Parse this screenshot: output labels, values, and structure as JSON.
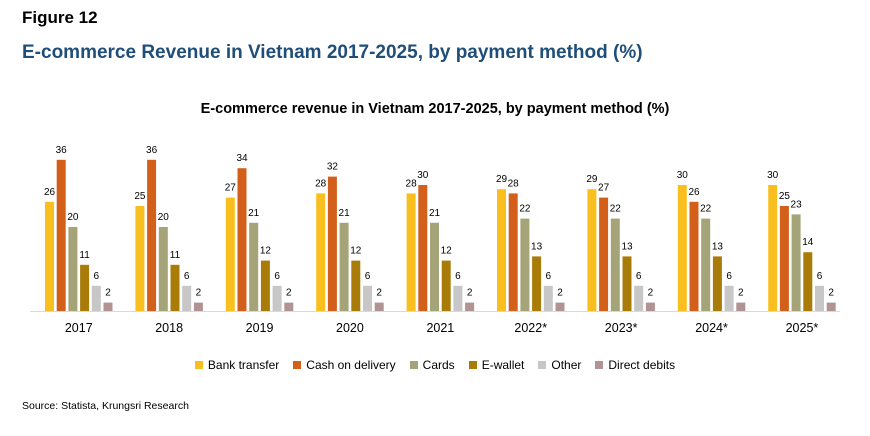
{
  "figure_label": "Figure 12",
  "page_title": "E-commerce Revenue in Vietnam 2017-2025,  by payment method (%)",
  "source": "Source: Statista, Krungsri Research",
  "chart_data": {
    "type": "bar",
    "title": "E-commerce revenue in Vietnam 2017-2025, by payment method (%)",
    "categories": [
      "2017",
      "2018",
      "2019",
      "2020",
      "2021",
      "2022*",
      "2023*",
      "2024*",
      "2025*"
    ],
    "ylim": [
      0,
      40
    ],
    "grid": false,
    "legend_position": "bottom",
    "series": [
      {
        "name": "Bank transfer",
        "color": "#f9bf1e",
        "values": [
          26,
          25,
          27,
          28,
          28,
          29,
          29,
          30,
          30
        ]
      },
      {
        "name": "Cash on delivery",
        "color": "#d2601a",
        "values": [
          36,
          36,
          34,
          32,
          30,
          28,
          27,
          26,
          25
        ]
      },
      {
        "name": "Cards",
        "color": "#a5a478",
        "values": [
          20,
          20,
          21,
          21,
          21,
          22,
          22,
          22,
          23
        ]
      },
      {
        "name": "E-wallet",
        "color": "#a97c0a",
        "values": [
          11,
          11,
          12,
          12,
          12,
          13,
          13,
          13,
          14
        ]
      },
      {
        "name": "Other",
        "color": "#c7c7c7",
        "values": [
          6,
          6,
          6,
          6,
          6,
          6,
          6,
          6,
          6
        ]
      },
      {
        "name": "Direct debits",
        "color": "#b09392",
        "values": [
          2,
          2,
          2,
          2,
          2,
          2,
          2,
          2,
          2
        ]
      }
    ]
  }
}
